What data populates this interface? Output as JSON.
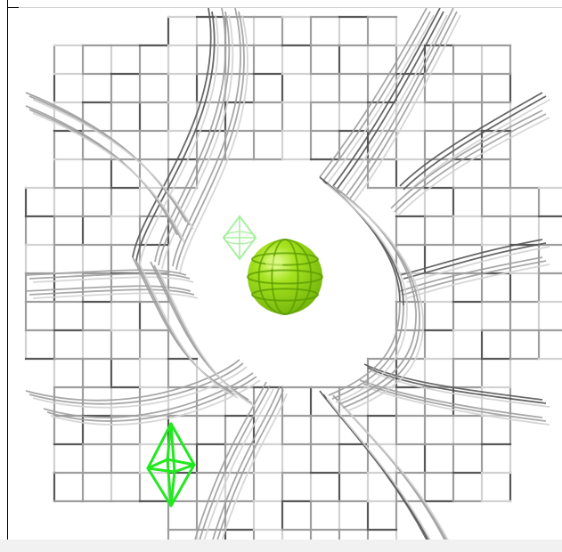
{
  "viewer": {
    "background": "#ffffff",
    "frame_color": "#000000",
    "bottom_strip_color": "#f1f1f1"
  },
  "scene": {
    "mesh_color": "#9e9e9e",
    "mesh_dark_color": "#585858",
    "mesh_light_color": "#d2d2d2",
    "central_sphere": {
      "color": "#8fd118",
      "highlight": "#d6f57a",
      "line_color": "#5a9a00",
      "icon": "sphere-icon"
    },
    "small_marker": {
      "color": "#22e81f",
      "icon": "octahedron-icon"
    },
    "faint_marker": {
      "color": "#a8f0a0",
      "icon": "octahedron-icon"
    }
  }
}
